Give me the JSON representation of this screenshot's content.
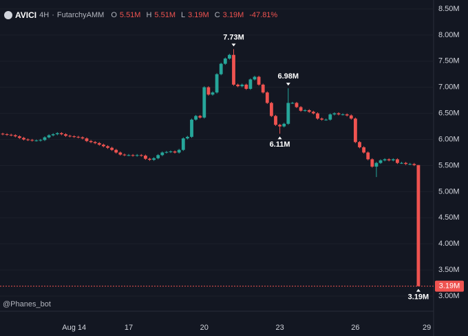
{
  "chart_data": {
    "type": "candlestick",
    "title": "AVICI",
    "interval": "4H",
    "source": "FutarchyAMM",
    "watermark": "@Phanes_bot",
    "ohlc_header": [
      {
        "key": "O",
        "value": {
          "value": 5.51,
          "label": "5.51M"
        }
      },
      {
        "key": "H",
        "value": {
          "value": 5.51,
          "label": "5.51M"
        }
      },
      {
        "key": "L",
        "value": {
          "value": 3.19,
          "label": "3.19M"
        }
      },
      {
        "key": "C",
        "value": {
          "value": 3.19,
          "label": "3.19M"
        }
      }
    ],
    "change": {
      "value": -47.81,
      "label": "-47.81%"
    },
    "up_color": "#26a69a",
    "down_color": "#ef5350",
    "categories": [
      null,
      null,
      null,
      null,
      null,
      null,
      null,
      null,
      null,
      null,
      null,
      null,
      null,
      null,
      null,
      null,
      null,
      "Aug 14",
      null,
      null,
      null,
      null,
      null,
      null,
      null,
      null,
      null,
      null,
      null,
      null,
      "17",
      null,
      null,
      null,
      null,
      null,
      null,
      null,
      null,
      null,
      null,
      null,
      null,
      null,
      null,
      null,
      null,
      null,
      "20",
      null,
      null,
      null,
      null,
      null,
      null,
      null,
      null,
      null,
      null,
      null,
      null,
      null,
      null,
      null,
      null,
      null,
      "23",
      null,
      null,
      null,
      null,
      null,
      null,
      null,
      null,
      null,
      null,
      null,
      null,
      null,
      null,
      null,
      null,
      null,
      "26",
      null,
      null,
      null,
      null,
      null,
      null,
      null,
      null,
      null,
      null,
      null,
      null,
      null,
      null,
      null,
      null,
      "29"
    ],
    "open": [
      6.11,
      6.1,
      6.09,
      6.08,
      6.06,
      6.03,
      6.0,
      5.99,
      5.98,
      5.98,
      5.99,
      6.04,
      6.08,
      6.1,
      6.12,
      6.1,
      6.07,
      6.06,
      6.05,
      6.04,
      6.02,
      5.97,
      5.95,
      5.93,
      5.9,
      5.87,
      5.84,
      5.8,
      5.75,
      5.71,
      5.7,
      5.7,
      5.69,
      5.7,
      5.69,
      5.63,
      5.61,
      5.64,
      5.7,
      5.75,
      5.76,
      5.77,
      5.75,
      5.8,
      6.02,
      6.05,
      6.38,
      6.45,
      6.42,
      7.0,
      6.86,
      6.9,
      7.25,
      7.45,
      7.55,
      7.62,
      7.05,
      7.02,
      7.05,
      6.97,
      7.15,
      7.2,
      7.05,
      6.9,
      6.7,
      6.45,
      6.28,
      6.25,
      6.3,
      6.7,
      6.7,
      6.62,
      6.55,
      6.56,
      6.53,
      6.5,
      6.4,
      6.38,
      6.38,
      6.48,
      6.5,
      6.48,
      6.48,
      6.46,
      6.4,
      5.95,
      5.85,
      5.75,
      5.62,
      5.48,
      5.55,
      5.6,
      5.62,
      5.6,
      5.62,
      5.55,
      5.55,
      5.53,
      5.53,
      5.51,
      null,
      null
    ],
    "high": [
      6.13,
      6.12,
      6.11,
      6.1,
      6.08,
      6.05,
      6.02,
      6.01,
      6.0,
      6.01,
      6.06,
      6.1,
      6.12,
      6.14,
      6.14,
      6.12,
      6.09,
      6.08,
      6.07,
      6.06,
      6.04,
      5.99,
      5.97,
      5.95,
      5.92,
      5.89,
      5.86,
      5.82,
      5.77,
      5.73,
      5.72,
      5.72,
      5.72,
      5.72,
      5.71,
      5.65,
      5.66,
      5.72,
      5.77,
      5.78,
      5.79,
      5.79,
      5.82,
      6.04,
      6.07,
      6.4,
      6.47,
      6.47,
      7.02,
      7.02,
      6.92,
      7.27,
      7.47,
      7.57,
      7.64,
      7.73,
      7.07,
      7.07,
      7.07,
      7.17,
      7.22,
      7.22,
      7.07,
      6.92,
      6.72,
      6.47,
      6.3,
      6.32,
      6.98,
      6.72,
      6.72,
      6.64,
      6.58,
      6.58,
      6.55,
      6.52,
      6.42,
      6.4,
      6.5,
      6.52,
      6.52,
      6.5,
      6.5,
      6.48,
      6.42,
      5.97,
      5.87,
      5.77,
      5.64,
      5.57,
      5.62,
      5.64,
      5.64,
      5.64,
      5.64,
      5.57,
      5.57,
      5.55,
      5.55,
      5.51,
      null,
      null
    ],
    "low": [
      6.08,
      6.07,
      6.06,
      6.04,
      6.01,
      5.98,
      5.97,
      5.96,
      5.96,
      5.96,
      5.97,
      6.02,
      6.06,
      6.08,
      6.08,
      6.05,
      6.04,
      6.03,
      6.02,
      6.0,
      5.95,
      5.93,
      5.91,
      5.88,
      5.85,
      5.82,
      5.78,
      5.73,
      5.69,
      5.68,
      5.68,
      5.67,
      5.67,
      5.67,
      5.61,
      5.59,
      5.59,
      5.62,
      5.68,
      5.73,
      5.74,
      5.73,
      5.73,
      5.78,
      6.0,
      6.03,
      6.36,
      6.4,
      6.4,
      6.84,
      6.84,
      6.88,
      7.23,
      7.43,
      7.53,
      7.03,
      7.0,
      7.0,
      6.95,
      6.95,
      7.13,
      7.03,
      6.88,
      6.68,
      6.43,
      6.26,
      6.11,
      6.23,
      6.28,
      6.68,
      6.6,
      6.53,
      6.53,
      6.51,
      6.48,
      6.38,
      6.36,
      6.36,
      6.36,
      6.46,
      6.46,
      6.46,
      6.44,
      6.38,
      5.93,
      5.83,
      5.73,
      5.6,
      5.46,
      5.28,
      5.53,
      5.58,
      5.58,
      5.58,
      5.53,
      5.53,
      5.51,
      5.51,
      5.49,
      3.19,
      null,
      null
    ],
    "close": [
      6.1,
      6.09,
      6.08,
      6.06,
      6.03,
      6.0,
      5.99,
      5.98,
      5.98,
      5.99,
      6.04,
      6.08,
      6.1,
      6.12,
      6.1,
      6.07,
      6.06,
      6.05,
      6.04,
      6.02,
      5.97,
      5.95,
      5.93,
      5.9,
      5.87,
      5.84,
      5.8,
      5.75,
      5.71,
      5.7,
      5.7,
      5.69,
      5.7,
      5.69,
      5.63,
      5.61,
      5.64,
      5.7,
      5.75,
      5.76,
      5.77,
      5.75,
      5.8,
      6.02,
      6.05,
      6.38,
      6.45,
      6.42,
      7.0,
      6.86,
      6.9,
      7.25,
      7.45,
      7.55,
      7.62,
      7.05,
      7.02,
      7.05,
      6.97,
      7.15,
      7.2,
      7.05,
      6.9,
      6.7,
      6.45,
      6.28,
      6.25,
      6.3,
      6.7,
      6.7,
      6.62,
      6.55,
      6.56,
      6.53,
      6.5,
      6.4,
      6.38,
      6.38,
      6.48,
      6.5,
      6.48,
      6.48,
      6.46,
      6.4,
      5.95,
      5.85,
      5.75,
      5.62,
      5.48,
      5.55,
      5.6,
      5.62,
      5.6,
      5.62,
      5.55,
      5.55,
      5.53,
      5.53,
      5.51,
      3.19,
      null,
      null
    ],
    "annotations": [
      {
        "value": 7.73,
        "label": "7.73M"
      },
      {
        "value": 6.98,
        "label": "6.98M"
      },
      {
        "value": 6.11,
        "label": "6.11M"
      },
      {
        "value": 3.19,
        "label": "3.19M"
      }
    ],
    "last_price": {
      "value": 3.19,
      "label": "3.19M"
    },
    "ylim": [
      2.98,
      8.56
    ],
    "yticks": [
      {
        "value": 3.0,
        "label": "3.00M"
      },
      {
        "value": 3.5,
        "label": "3.50M"
      },
      {
        "value": 4.0,
        "label": "4.00M"
      },
      {
        "value": 4.5,
        "label": "4.50M"
      },
      {
        "value": 5.0,
        "label": "5.00M"
      },
      {
        "value": 5.5,
        "label": "5.50M"
      },
      {
        "value": 6.0,
        "label": "6.00M"
      },
      {
        "value": 6.5,
        "label": "6.50M"
      },
      {
        "value": 7.0,
        "label": "7.00M"
      },
      {
        "value": 7.5,
        "label": "7.50M"
      },
      {
        "value": 8.0,
        "label": "8.00M"
      },
      {
        "value": 8.5,
        "label": "8.50M"
      }
    ],
    "grid": true
  }
}
